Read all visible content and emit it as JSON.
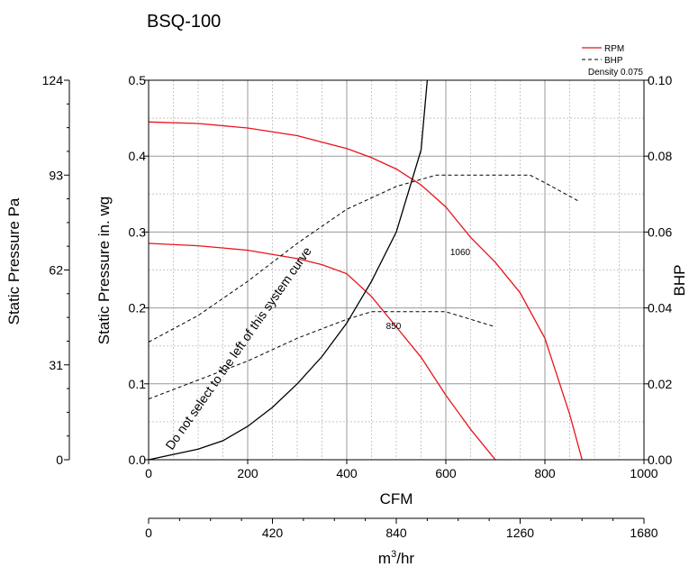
{
  "chart_data": {
    "type": "line",
    "title": "BSQ-100",
    "xlabel": "CFM",
    "x_secondary_label": "m³/hr",
    "x_secondary_label_base": "m",
    "x_secondary_label_sup": "3",
    "x_secondary_label_tail": "/hr",
    "ylabel": "Static Pressure in. wg",
    "y_secondary_label": "Static Pressure Pa",
    "y2label": "BHP",
    "xlim": [
      0,
      1000
    ],
    "ylim": [
      0,
      0.5
    ],
    "y2lim": [
      0,
      0.1
    ],
    "x_ticks": [
      0,
      200,
      400,
      600,
      800,
      1000
    ],
    "x_tick_labels": [
      "0",
      "200",
      "400",
      "600",
      "800",
      "1000"
    ],
    "y_ticks": [
      0,
      0.1,
      0.2,
      0.3,
      0.4,
      0.5
    ],
    "y_tick_labels": [
      "0.0",
      "0.1",
      "0.2",
      "0.3",
      "0.4",
      "0.5"
    ],
    "y2_ticks": [
      0,
      0.02,
      0.04,
      0.06,
      0.08,
      0.1
    ],
    "y2_tick_labels": [
      "0.00",
      "0.02",
      "0.04",
      "0.06",
      "0.08",
      "0.10"
    ],
    "m3hr_ticks": [
      0,
      420,
      840,
      1260,
      1680
    ],
    "m3hr_tick_labels": [
      "0",
      "420",
      "840",
      "1260",
      "1680"
    ],
    "pa_ticks": [
      0,
      31,
      62,
      93,
      124
    ],
    "pa_tick_labels": [
      "0",
      "31",
      "62",
      "93",
      "124"
    ],
    "grid": true,
    "legend": {
      "placement": "top-right",
      "entries": [
        {
          "label": "RPM",
          "style": "solid",
          "color": "#e8141b"
        },
        {
          "label": "BHP",
          "style": "dashed",
          "color": "#000000"
        }
      ],
      "note": "Density 0.075"
    },
    "series": [
      {
        "name": "RPM",
        "curve_label": "1060",
        "kind": "pressure",
        "color": "#e8141b",
        "x": [
          0,
          100,
          200,
          300,
          400,
          450,
          500,
          550,
          600,
          650,
          700,
          750,
          800,
          850,
          875
        ],
        "y": [
          0.445,
          0.443,
          0.437,
          0.427,
          0.41,
          0.398,
          0.383,
          0.362,
          0.333,
          0.293,
          0.26,
          0.22,
          0.16,
          0.06,
          0
        ]
      },
      {
        "name": "RPM",
        "curve_label": "850",
        "kind": "pressure",
        "color": "#e8141b",
        "x": [
          0,
          100,
          200,
          300,
          350,
          400,
          450,
          500,
          550,
          600,
          650,
          700
        ],
        "y": [
          0.285,
          0.282,
          0.276,
          0.265,
          0.257,
          0.245,
          0.215,
          0.175,
          0.135,
          0.085,
          0.04,
          0
        ]
      },
      {
        "name": "BHP",
        "kind": "bhp",
        "color": "#000000",
        "x": [
          0,
          100,
          200,
          300,
          400,
          500,
          580,
          650,
          700,
          770,
          800,
          870
        ],
        "y": [
          0.031,
          0.038,
          0.047,
          0.057,
          0.066,
          0.072,
          0.075,
          0.075,
          0.075,
          0.075,
          0.073,
          0.068
        ]
      },
      {
        "name": "BHP",
        "kind": "bhp",
        "color": "#000000",
        "x": [
          0,
          100,
          200,
          300,
          400,
          450,
          500,
          550,
          600,
          650,
          700
        ],
        "y": [
          0.016,
          0.021,
          0.026,
          0.032,
          0.037,
          0.039,
          0.039,
          0.039,
          0.039,
          0.037,
          0.035
        ]
      }
    ],
    "system_curve": {
      "label": "Do not select to the left of this system curve",
      "color": "#000000",
      "x": [
        0,
        100,
        150,
        200,
        250,
        300,
        350,
        400,
        450,
        500,
        550,
        562.5
      ],
      "y": [
        0,
        0.014,
        0.025,
        0.044,
        0.069,
        0.1,
        0.136,
        0.18,
        0.235,
        0.3,
        0.408,
        0.5
      ]
    }
  }
}
